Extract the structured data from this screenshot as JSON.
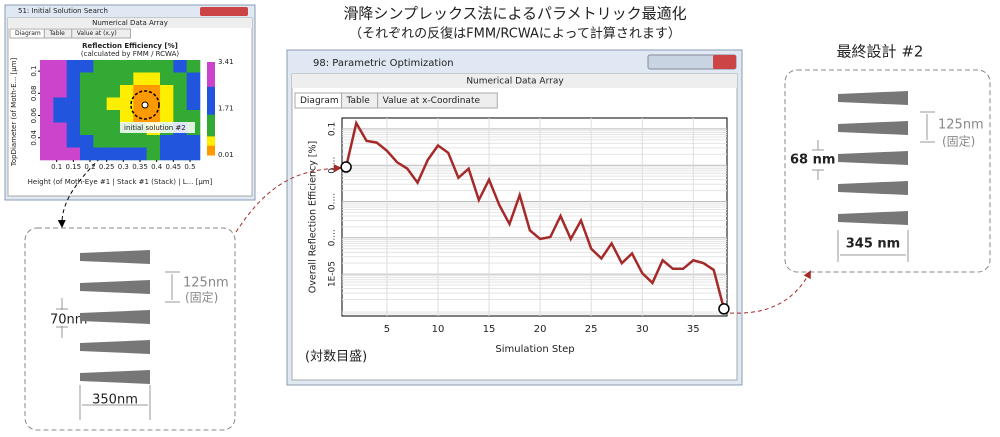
{
  "header": {
    "title": "滑降シンプレックス法によるパラメトリック最適化",
    "subtitle": "（それぞれの反復はFMM/RCWAによって計算されます）"
  },
  "initial_window": {
    "title": "51: Initial Solution Search",
    "panel": "Numerical Data Array",
    "tabs": [
      "Diagram",
      "Table",
      "Value at (x,y)"
    ],
    "chart": {
      "title": "Reflection Efficiency [%]",
      "subtitle": "(calculated by FMM / RCWA)",
      "xlabel": "Height (of Moth-Eye #1 | Stack #1 (Stack) | L... [µm]",
      "ylabel": "TopDiameter (of Moth-E... [µm]",
      "xlim": [
        0.05,
        0.53
      ],
      "xticks": [
        0.1,
        0.15,
        0.2,
        0.25,
        0.3,
        0.35,
        0.4,
        0.45,
        0.5
      ],
      "ylim": [
        0.02,
        0.11
      ],
      "yticks": [
        0.1,
        0.08,
        0.06,
        0.04
      ],
      "colorbar_ticks": [
        3.41,
        1.71,
        0.01
      ],
      "annotation": "initial solution #2",
      "values": [
        [
          3.2,
          2.8,
          2.4,
          1.6,
          1.2,
          1.0,
          1.3,
          1.0,
          0.8,
          1.4,
          1.8,
          1.2
        ],
        [
          3.0,
          2.6,
          2.0,
          1.4,
          1.0,
          1.2,
          0.9,
          0.6,
          0.5,
          0.9,
          1.5,
          1.6
        ],
        [
          3.3,
          2.9,
          2.2,
          1.5,
          0.8,
          1.0,
          0.7,
          0.3,
          0.2,
          0.6,
          1.2,
          1.9
        ],
        [
          2.9,
          2.4,
          1.8,
          1.3,
          1.0,
          0.7,
          0.5,
          0.1,
          0.05,
          0.4,
          1.0,
          1.6
        ],
        [
          3.1,
          2.5,
          1.6,
          1.0,
          0.8,
          1.1,
          0.6,
          0.2,
          0.1,
          0.7,
          1.4,
          1.2
        ],
        [
          3.4,
          2.7,
          1.9,
          1.2,
          1.1,
          0.9,
          1.0,
          0.8,
          0.6,
          1.2,
          1.8,
          1.5
        ],
        [
          3.2,
          2.8,
          2.3,
          1.7,
          1.3,
          1.5,
          1.2,
          1.4,
          1.0,
          1.6,
          2.0,
          1.8
        ],
        [
          3.4,
          3.1,
          2.6,
          2.0,
          1.8,
          1.6,
          1.9,
          1.7,
          1.5,
          2.1,
          2.3,
          2.0
        ]
      ]
    }
  },
  "initial_design": {
    "period": "70nm",
    "height": "125nm",
    "fixed": "(固定)",
    "width": "350nm"
  },
  "main_window": {
    "title": "98: Parametric Optimization",
    "panel": "Numerical Data Array",
    "tabs": [
      "Diagram",
      "Table",
      "Value at x-Coordinate"
    ],
    "scale_note": "(対数目盛)"
  },
  "chart_data": {
    "type": "line",
    "xlabel": "Simulation Step",
    "ylabel": "Overall Reflection Efficiency [%]",
    "color": "#a52a2a",
    "log_y": true,
    "grid": true,
    "x": [
      1,
      2,
      3,
      4,
      5,
      6,
      7,
      8,
      9,
      10,
      11,
      12,
      13,
      14,
      15,
      16,
      17,
      18,
      19,
      20,
      21,
      22,
      23,
      24,
      25,
      26,
      27,
      28,
      29,
      30,
      31,
      32,
      33,
      34,
      35,
      36,
      37,
      38
    ],
    "values": [
      0.0089,
      0.145,
      0.047,
      0.042,
      0.025,
      0.012,
      0.008,
      0.0033,
      0.014,
      0.035,
      0.022,
      0.0045,
      0.008,
      0.0011,
      0.004,
      0.0008,
      0.00024,
      0.0015,
      0.00016,
      9.3e-05,
      0.000105,
      0.0004,
      9.3e-05,
      0.0003,
      5e-05,
      2.7e-05,
      7e-05,
      2e-05,
      3.7e-05,
      1.06e-05,
      5.7e-06,
      2.4e-05,
      1.4e-05,
      1.4e-05,
      2.4e-05,
      2e-05,
      1.3e-05,
      1.1e-06
    ],
    "xlim": [
      0.6,
      38.3
    ],
    "xticks": [
      5,
      10,
      15,
      20,
      25,
      30,
      35
    ],
    "ylim": [
      7e-07,
      0.2
    ],
    "yticks": [
      0.1,
      {
        "value": 0.01,
        "label": "0...."
      },
      {
        "value": 0.001,
        "label": "0...."
      },
      {
        "value": 0.0001,
        "label": "0...."
      },
      {
        "value": 1e-05,
        "label": "1E-05"
      }
    ]
  },
  "final_design": {
    "title": "最終設計 #2",
    "height": "125nm",
    "fixed": "(固定)",
    "period": "68 nm",
    "width": "345 nm"
  }
}
